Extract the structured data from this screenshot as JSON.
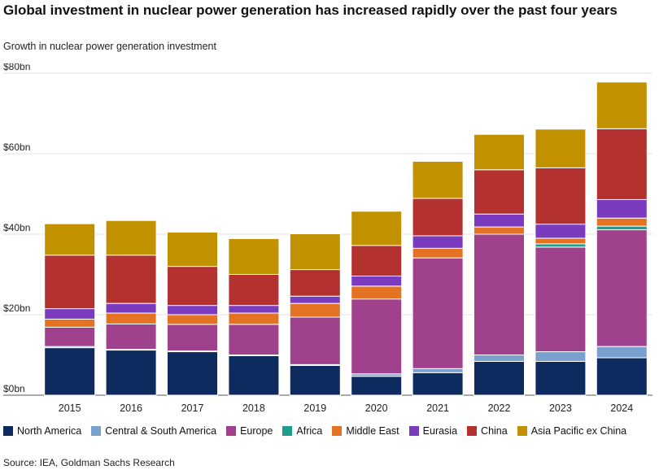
{
  "title": "Global investment in nuclear power generation has increased rapidly over the past four years",
  "subtitle": "Growth in nuclear power generation investment",
  "source": "Source: IEA, Goldman Sachs Research",
  "chart_data": {
    "type": "bar",
    "stacked": true,
    "categories": [
      "2015",
      "2016",
      "2017",
      "2018",
      "2019",
      "2020",
      "2021",
      "2022",
      "2023",
      "2024"
    ],
    "ylim": [
      0,
      80
    ],
    "yticks": [
      0,
      20,
      40,
      60,
      80
    ],
    "ytick_labels": [
      "$0bn",
      "$20bn",
      "$40bn",
      "$60bn",
      "$80bn"
    ],
    "grid": "horizontal",
    "legend_position": "bottom",
    "series": [
      {
        "name": "North America",
        "color": "#0d2b5e",
        "values": [
          11.8,
          11.2,
          10.8,
          9.8,
          7.4,
          4.7,
          5.6,
          8.4,
          8.4,
          9.3
        ]
      },
      {
        "name": "Central & South America",
        "color": "#7aa0cf",
        "values": [
          0.3,
          0.2,
          0.2,
          0.2,
          0.2,
          0.6,
          1.0,
          1.6,
          2.4,
          2.8
        ]
      },
      {
        "name": "Europe",
        "color": "#a0418e",
        "values": [
          4.8,
          6.3,
          6.6,
          7.6,
          11.8,
          18.6,
          27.5,
          30.0,
          26.0,
          29.0
        ]
      },
      {
        "name": "Africa",
        "color": "#1b9e8a",
        "values": [
          0.0,
          0.0,
          0.0,
          0.0,
          0.0,
          0.0,
          0.0,
          0.0,
          0.8,
          0.9
        ]
      },
      {
        "name": "Middle East",
        "color": "#e37222",
        "values": [
          2.0,
          2.7,
          2.4,
          2.8,
          3.4,
          3.2,
          2.4,
          1.8,
          1.4,
          2.0
        ]
      },
      {
        "name": "Eurasia",
        "color": "#7b3bbf",
        "values": [
          2.6,
          2.4,
          2.3,
          1.9,
          1.8,
          2.5,
          3.1,
          3.2,
          3.5,
          4.6
        ]
      },
      {
        "name": "China",
        "color": "#b3312e",
        "values": [
          13.3,
          12.0,
          9.7,
          7.7,
          6.6,
          7.6,
          9.3,
          11.0,
          14.0,
          17.6
        ]
      },
      {
        "name": "Asia Pacific ex China",
        "color": "#c19100",
        "values": [
          7.8,
          8.6,
          8.5,
          8.9,
          8.9,
          8.5,
          9.2,
          8.8,
          9.6,
          11.6
        ]
      }
    ]
  }
}
